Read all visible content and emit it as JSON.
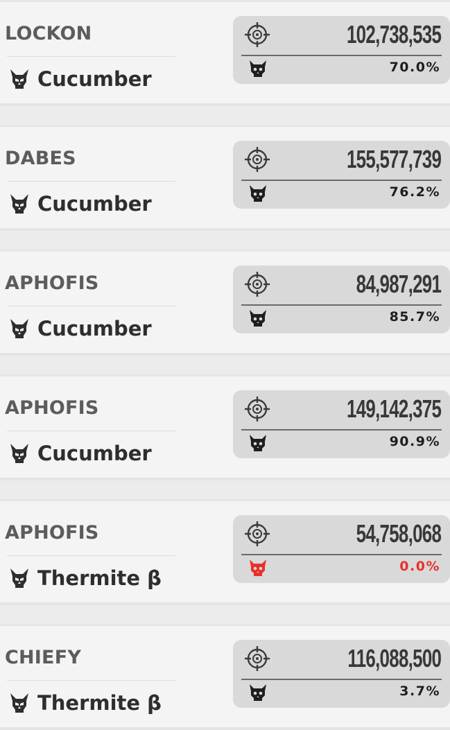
{
  "colors": {
    "background": "#ececec",
    "row": "#f4f4f4",
    "stat_box": "#d9d9d9",
    "text_dark": "#2e2e2e",
    "player_text": "#5c5c5c",
    "alert_red": "#e8302a"
  },
  "icons": {
    "character": "horned-skull-icon",
    "score": "crosshair-target-icon",
    "kill_rate": "skull-icon"
  },
  "rows": [
    {
      "player": "LOCKON",
      "character": "Cucumber",
      "score": "102,738,535",
      "percent": "70.0%",
      "percent_zero": false
    },
    {
      "player": "DABES",
      "character": "Cucumber",
      "score": "155,577,739",
      "percent": "76.2%",
      "percent_zero": false
    },
    {
      "player": "APHOFIS",
      "character": "Cucumber",
      "score": "84,987,291",
      "percent": "85.7%",
      "percent_zero": false
    },
    {
      "player": "APHOFIS",
      "character": "Cucumber",
      "score": "149,142,375",
      "percent": "90.9%",
      "percent_zero": false
    },
    {
      "player": "APHOFIS",
      "character": "Thermite β",
      "score": "54,758,068",
      "percent": "0.0%",
      "percent_zero": true
    },
    {
      "player": "CHIEFY",
      "character": "Thermite β",
      "score": "116,088,500",
      "percent": "3.7%",
      "percent_zero": false
    }
  ]
}
